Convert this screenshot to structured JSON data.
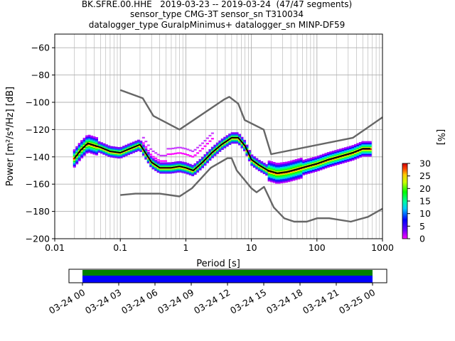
{
  "title_lines": [
    "BK.SFRE.00.HHE   2019-03-23 -- 2019-03-24  (47/47 segments)",
    "sensor_type CMG-3T sensor_sn T310034",
    "datalogger_type GuralpMinimus+ datalogger_sn MINP-DF59"
  ],
  "colorbar": {
    "label": "[%]",
    "ticks": [
      "0",
      "5",
      "10",
      "15",
      "20",
      "25",
      "30"
    ],
    "range": [
      0,
      30
    ]
  },
  "chart_data": [
    {
      "type": "scatter",
      "subtype": "probabilistic power spectral density",
      "xlabel": "Period [s]",
      "ylabel": "Power [m²/s⁴/Hz] [dB]",
      "xscale": "log",
      "xlim": [
        0.01,
        1000
      ],
      "ylim": [
        -200,
        -50
      ],
      "xticks": [
        {
          "v": 0.01,
          "label": "0.01"
        },
        {
          "v": 0.1,
          "label": "0.1"
        },
        {
          "v": 1,
          "label": "1"
        },
        {
          "v": 10,
          "label": "10"
        },
        {
          "v": 100,
          "label": "100"
        },
        {
          "v": 1000,
          "label": "1000"
        }
      ],
      "yticks": [
        -60,
        -80,
        -100,
        -120,
        -140,
        -160,
        -180,
        -200
      ],
      "grid": true,
      "series": [
        {
          "role": "noise-model-high",
          "color": "#666666",
          "x": [
            0.1,
            0.22,
            0.32,
            0.8,
            3.8,
            4.6,
            6.3,
            7.9,
            15.4,
            20,
            354.8,
            1000
          ],
          "y": [
            -91,
            -97,
            -110,
            -120,
            -98,
            -96,
            -101,
            -113,
            -120,
            -138,
            -126,
            -111
          ]
        },
        {
          "role": "noise-model-low",
          "color": "#666666",
          "x": [
            0.1,
            0.17,
            0.4,
            0.8,
            1.24,
            2.4,
            4.3,
            5,
            6,
            10,
            12,
            15.6,
            21.9,
            31.6,
            45,
            70,
            101,
            154,
            328,
            600,
            1000
          ],
          "y": [
            -168,
            -167,
            -167,
            -169,
            -163,
            -148,
            -141,
            -141,
            -150,
            -163,
            -166,
            -162,
            -177,
            -185,
            -187.5,
            -187.5,
            -185,
            -185,
            -187.5,
            -184,
            -178
          ]
        },
        {
          "role": "median",
          "color": "#000000",
          "x": [
            0.02,
            0.025,
            0.032,
            0.05,
            0.07,
            0.1,
            0.14,
            0.2,
            0.3,
            0.4,
            0.6,
            0.8,
            1,
            1.3,
            1.8,
            2.5,
            3.5,
            5,
            6.3,
            8,
            10,
            13,
            18,
            25,
            35,
            50,
            70,
            100,
            150,
            250,
            350,
            500,
            650
          ],
          "y": [
            -141,
            -135,
            -130,
            -133,
            -136,
            -137,
            -134,
            -131,
            -144,
            -148,
            -148,
            -147,
            -148,
            -150,
            -144,
            -137,
            -131,
            -126,
            -126,
            -132,
            -142,
            -146,
            -150,
            -152,
            -151,
            -149,
            -147,
            -145,
            -142,
            -139,
            -137,
            -134,
            -134
          ]
        }
      ]
    },
    {
      "type": "bar",
      "subtype": "data availability timeline",
      "categories": [
        "03-24 00",
        "03-24 03",
        "03-24 06",
        "03-24 09",
        "03-24 12",
        "03-24 15",
        "03-24 18",
        "03-24 21",
        "03-25 00"
      ],
      "coverage": [
        {
          "start": "03-24 00",
          "end": "03-25 00",
          "color": "#008000"
        },
        {
          "start": "03-24 00",
          "end": "03-25 00",
          "color": "#0000ff"
        }
      ]
    }
  ]
}
